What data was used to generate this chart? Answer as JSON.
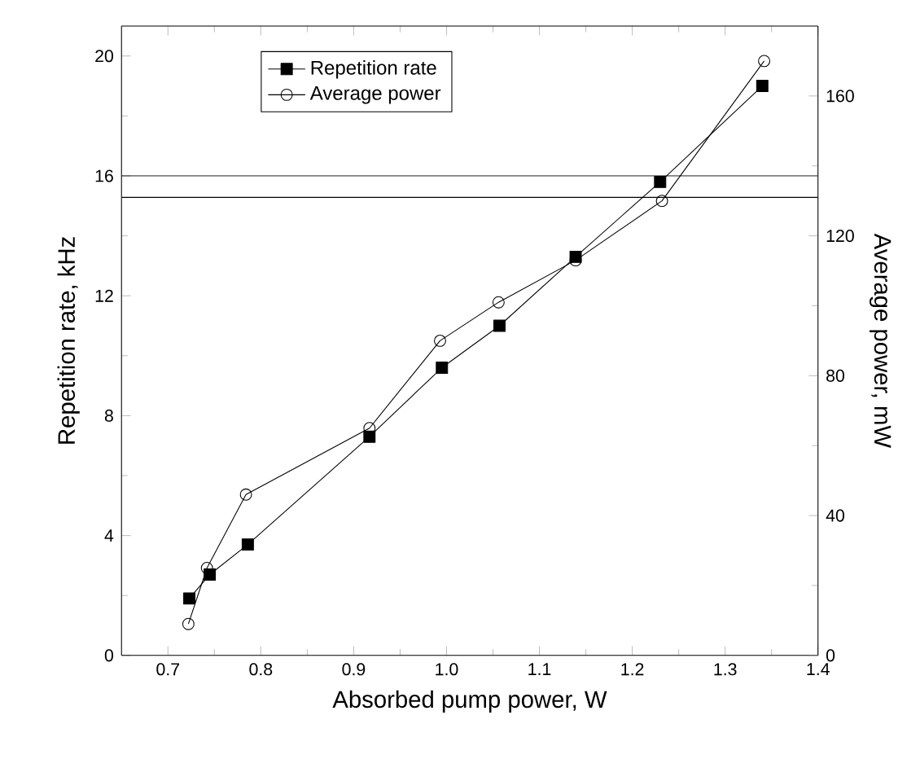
{
  "chart_data": {
    "type": "line",
    "xlabel": "Absorbed pump power, W",
    "ylabel": "Repetition rate, kHz",
    "y2label": "Average power, mW",
    "xlim": [
      0.65,
      1.4
    ],
    "xticks": [
      {
        "value": 0.7,
        "label": "0.7"
      },
      {
        "value": 0.8,
        "label": "0.8"
      },
      {
        "value": 0.9,
        "label": "0.9"
      },
      {
        "value": 1.0,
        "label": "1.0"
      },
      {
        "value": 1.1,
        "label": "1.1"
      },
      {
        "value": 1.2,
        "label": "1.2"
      },
      {
        "value": 1.3,
        "label": "1.3"
      },
      {
        "value": 1.4,
        "label": "1.4"
      }
    ],
    "ylim": [
      0,
      21
    ],
    "yticks": [
      0,
      4,
      8,
      12,
      16,
      20
    ],
    "y2lim": [
      0,
      180
    ],
    "y2ticks": [
      0,
      40,
      80,
      120,
      160
    ],
    "legend": "top left",
    "series": [
      {
        "name": "Repetition rate",
        "color": "#000000",
        "marker": "square",
        "x": [
          0.723,
          0.745,
          0.786,
          0.917,
          0.995,
          1.057,
          1.139,
          1.23,
          1.34
        ],
        "values": [
          1.9,
          2.7,
          3.7,
          7.3,
          9.6,
          11.0,
          13.3,
          15.8,
          19.0
        ]
      },
      {
        "name": "Average power",
        "color": "#000000",
        "marker": "circle",
        "axis": "y2",
        "x": [
          0.722,
          0.742,
          0.784,
          0.917,
          0.993,
          1.056,
          1.139,
          1.232,
          1.342
        ],
        "values": [
          9,
          25,
          46,
          65,
          90,
          101,
          113,
          130,
          170
        ]
      }
    ],
    "ref_lines": [
      {
        "axis": "y",
        "value": 16
      },
      {
        "axis": "y2",
        "value": 131
      }
    ]
  }
}
